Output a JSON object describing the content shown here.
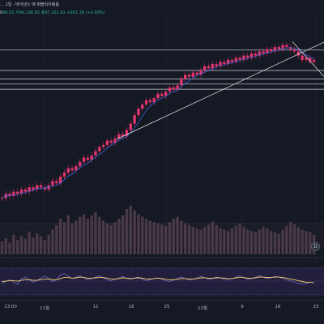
{
  "legend": {
    "line1": "… 1일 · 바이낸스 애 퍼블릭어웨흠",
    "line2_prefix": "0",
    "line2_values": "66.02 저96,196.85 종97,161.62 +951.38 (+0.99%)"
  },
  "x_axis_labels": [
    "13:00",
    "11월",
    "11",
    "18",
    "25",
    "12월",
    "9",
    "16",
    "23"
  ],
  "badge_label": "D",
  "colors": {
    "background": "#151924",
    "candle": "#e3346e",
    "ma": "#3a6df0",
    "trendline": "#e8e8e8",
    "volume_bg": "#1a1d28",
    "rsi_band": "#2a2747",
    "rsi_line": "#8a7fe0",
    "rsi_signal": "#f5d26b"
  },
  "chart_data": [
    {
      "type": "candlestick",
      "title": "",
      "series": [
        {
          "values": [
            28,
            30,
            29,
            31,
            30,
            32,
            31,
            33,
            32,
            34,
            33,
            32,
            34,
            36,
            35,
            38,
            40,
            42,
            41,
            43,
            45,
            47,
            46,
            48,
            50,
            52,
            53,
            55,
            54,
            56,
            58,
            57,
            60,
            63,
            67,
            70,
            72,
            74,
            73,
            75,
            77,
            76,
            78,
            80,
            79,
            81,
            84,
            86,
            85,
            87,
            86,
            88,
            90,
            89,
            91,
            90,
            92,
            91,
            93,
            92,
            94,
            93,
            95,
            94,
            96,
            95,
            97,
            96,
            98,
            97,
            99,
            98,
            100,
            99,
            98,
            97,
            95,
            93,
            94,
            92,
            93
          ]
        }
      ],
      "horizontal_levels_rel": [
        0.92,
        0.8,
        0.75,
        0.72,
        0.69
      ]
    },
    {
      "type": "bar",
      "title": "",
      "series": [
        {
          "values": [
            20,
            25,
            18,
            30,
            22,
            28,
            24,
            35,
            26,
            32,
            28,
            22,
            30,
            38,
            45,
            55,
            50,
            60,
            48,
            52,
            58,
            62,
            55,
            60,
            65,
            58,
            52,
            48,
            45,
            50,
            55,
            60,
            70,
            75,
            68,
            62,
            58,
            55,
            52,
            50,
            48,
            46,
            44,
            50,
            55,
            58,
            52,
            48,
            45,
            42,
            40,
            38,
            42,
            46,
            50,
            45,
            40,
            38,
            36,
            40,
            44,
            48,
            42,
            38,
            36,
            34,
            38,
            42,
            40,
            36,
            34,
            32,
            38,
            44,
            50,
            46,
            42,
            38,
            36,
            34,
            30
          ]
        }
      ]
    },
    {
      "type": "line",
      "title": "",
      "series": [
        {
          "values": [
            45,
            50,
            55,
            48,
            42,
            58,
            62,
            55,
            48,
            52,
            60,
            65,
            58,
            50,
            55,
            68,
            72,
            65,
            58,
            62,
            66,
            60,
            55,
            58,
            62,
            66,
            60,
            55,
            52,
            56,
            60,
            64,
            58,
            55,
            60,
            62,
            56,
            52,
            55,
            58,
            60,
            56,
            52,
            50,
            54,
            58,
            62,
            58,
            54,
            56,
            60,
            64,
            60,
            56,
            58,
            62,
            60,
            56,
            54,
            58,
            62,
            66,
            60,
            56,
            58,
            62,
            66,
            62,
            58,
            60,
            64,
            62,
            58,
            55,
            52,
            48,
            45,
            42,
            45,
            48,
            46
          ]
        },
        {
          "values": [
            50,
            51,
            52,
            52,
            51,
            53,
            55,
            55,
            53,
            53,
            55,
            57,
            57,
            55,
            55,
            58,
            61,
            61,
            59,
            60,
            62,
            61,
            59,
            59,
            60,
            61,
            61,
            59,
            57,
            57,
            58,
            60,
            59,
            58,
            59,
            60,
            59,
            57,
            57,
            58,
            59,
            58,
            56,
            55,
            55,
            56,
            58,
            58,
            57,
            57,
            58,
            60,
            60,
            59,
            59,
            60,
            60,
            59,
            58,
            58,
            60,
            61,
            61,
            59,
            59,
            60,
            62,
            62,
            61,
            61,
            62,
            62,
            61,
            59,
            57,
            55,
            52,
            50,
            48,
            48,
            47
          ]
        }
      ],
      "ylim": [
        0,
        100
      ]
    }
  ]
}
